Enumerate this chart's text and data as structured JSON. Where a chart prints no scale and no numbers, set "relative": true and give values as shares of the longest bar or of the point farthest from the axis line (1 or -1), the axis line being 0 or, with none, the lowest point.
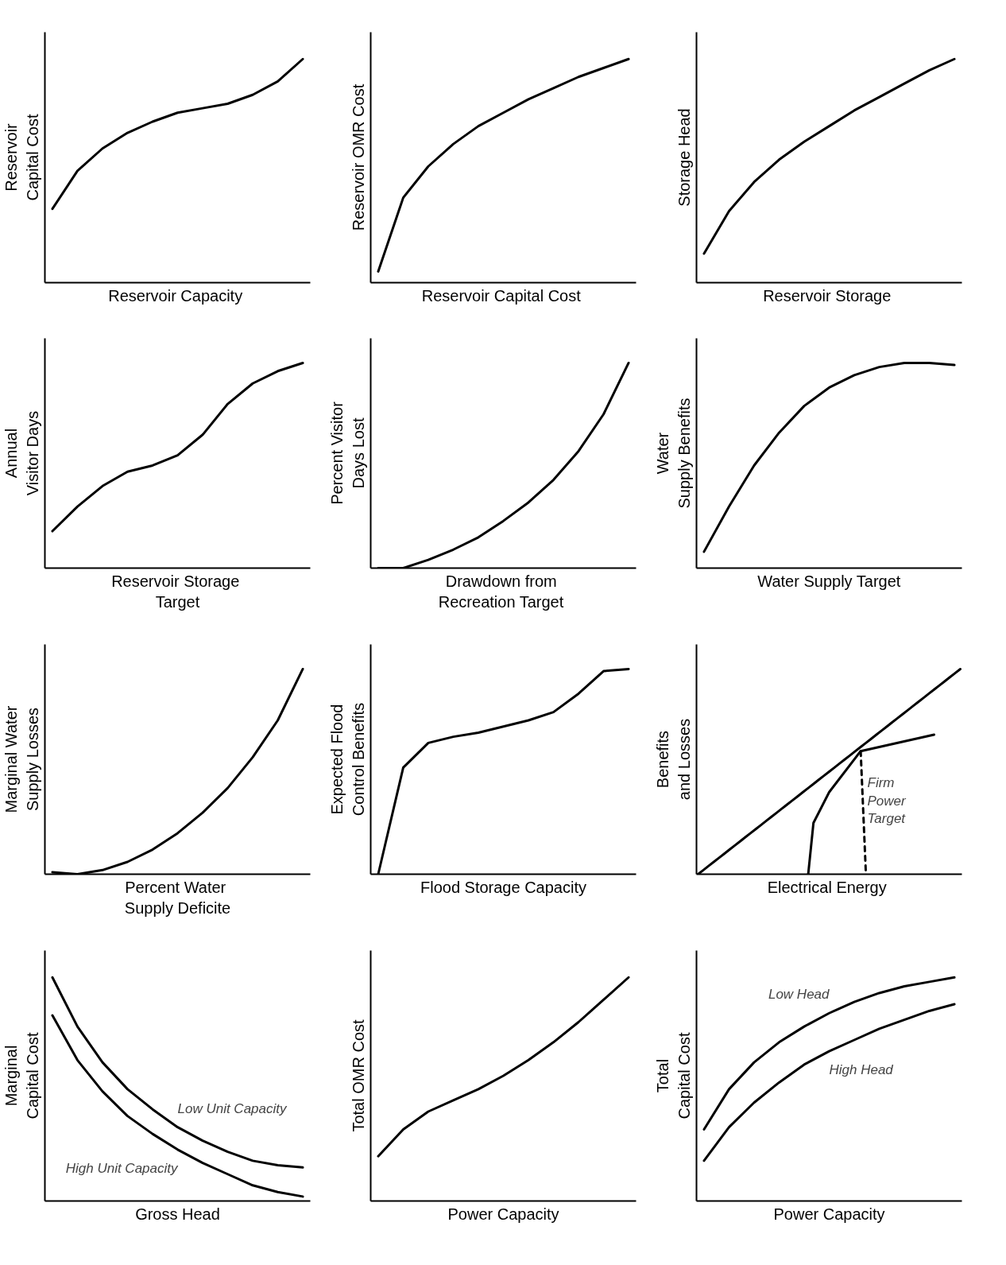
{
  "chart_data": [
    {
      "type": "line",
      "relative": true,
      "xlabel": "Reservoir  Capacity",
      "ylabel": "Reservoir\nCapital Cost",
      "categories": [
        null,
        null,
        null,
        null,
        null,
        null,
        null,
        null,
        null,
        null,
        null
      ],
      "series": [
        {
          "color": "#000000",
          "values": [
            0.33,
            0.5,
            0.6,
            0.67,
            0.72,
            0.76,
            0.78,
            0.8,
            0.84,
            0.9,
            1
          ]
        }
      ]
    },
    {
      "type": "line",
      "relative": true,
      "xlabel": "Reservoir  Capital Cost",
      "ylabel": "Reservoir OMR Cost",
      "categories": [
        null,
        null,
        null,
        null,
        null,
        null,
        null,
        null,
        null,
        null,
        null
      ],
      "series": [
        {
          "color": "#000000",
          "values": [
            0.05,
            0.38,
            0.52,
            0.62,
            0.7,
            0.76,
            0.82,
            0.87,
            0.92,
            0.96,
            1
          ]
        }
      ]
    },
    {
      "type": "line",
      "relative": true,
      "xlabel": "Reservoir  Storage",
      "ylabel": "Storage Head",
      "categories": [
        null,
        null,
        null,
        null,
        null,
        null,
        null,
        null,
        null,
        null,
        null
      ],
      "series": [
        {
          "color": "#000000",
          "values": [
            0.13,
            0.32,
            0.45,
            0.55,
            0.63,
            0.7,
            0.77,
            0.83,
            0.89,
            0.95,
            1
          ]
        }
      ]
    },
    {
      "type": "line",
      "relative": true,
      "xlabel": "Reservoir  Storage\nTarget",
      "ylabel": "Annual\nVisitor Days",
      "categories": [
        null,
        null,
        null,
        null,
        null,
        null,
        null,
        null,
        null,
        null,
        null
      ],
      "series": [
        {
          "color": "#000000",
          "values": [
            0.18,
            0.3,
            0.4,
            0.47,
            0.5,
            0.55,
            0.65,
            0.8,
            0.9,
            0.96,
            1
          ]
        }
      ]
    },
    {
      "type": "line",
      "relative": true,
      "xlabel": "Drawdown  from\nRecreation  Target",
      "ylabel": "Percent Visitor\nDays Lost",
      "categories": [
        null,
        null,
        null,
        null,
        null,
        null,
        null,
        null,
        null,
        null,
        null
      ],
      "series": [
        {
          "color": "#000000",
          "values": [
            0,
            0,
            0.04,
            0.09,
            0.15,
            0.23,
            0.32,
            0.43,
            0.57,
            0.75,
            1
          ]
        }
      ]
    },
    {
      "type": "line",
      "relative": true,
      "xlabel": "Water Supply Target",
      "ylabel": "Water\nSupply Benefits",
      "categories": [
        null,
        null,
        null,
        null,
        null,
        null,
        null,
        null,
        null,
        null,
        null
      ],
      "series": [
        {
          "color": "#000000",
          "values": [
            0.08,
            0.3,
            0.5,
            0.66,
            0.79,
            0.88,
            0.94,
            0.98,
            1,
            1,
            0.99
          ]
        }
      ]
    },
    {
      "type": "line",
      "relative": true,
      "xlabel": "Percent  Water\nSupply Deficite",
      "ylabel": "Marginal Water\nSupply Losses",
      "categories": [
        null,
        null,
        null,
        null,
        null,
        null,
        null,
        null,
        null,
        null,
        null
      ],
      "series": [
        {
          "color": "#000000",
          "values": [
            0.01,
            0,
            0.02,
            0.06,
            0.12,
            0.2,
            0.3,
            0.42,
            0.57,
            0.75,
            1
          ]
        }
      ]
    },
    {
      "type": "line",
      "relative": true,
      "xlabel": "Flood Storage Capacity",
      "ylabel": "Expected Flood\nControl Benefits",
      "categories": [
        null,
        null,
        null,
        null,
        null,
        null,
        null,
        null,
        null,
        null,
        null
      ],
      "series": [
        {
          "color": "#000000",
          "values": [
            0,
            0.52,
            0.64,
            0.67,
            0.69,
            0.72,
            0.75,
            0.79,
            0.88,
            0.99,
            1
          ]
        }
      ]
    },
    {
      "type": "line",
      "relative": true,
      "xlabel": "Electrical  Energy",
      "ylabel": "Benefits\nand Losses",
      "categories": [
        null,
        null,
        null,
        null,
        null,
        null,
        null,
        null,
        null,
        null,
        null,
        null,
        null,
        null,
        null,
        null,
        null,
        null,
        null,
        null,
        null,
        null,
        null,
        null,
        null,
        null,
        null,
        null,
        null,
        null,
        null,
        null,
        null,
        null,
        null,
        null,
        null,
        null,
        null,
        null,
        null,
        null,
        null,
        null,
        null,
        null,
        null,
        null,
        null,
        null,
        null
      ],
      "annotations": [
        "Firm\nPower\nTarget"
      ],
      "series": [
        {
          "color": "#000000",
          "values": [
            0,
            0.02,
            0.04,
            0.06,
            0.08,
            0.1,
            0.12,
            0.14,
            0.16,
            0.18,
            0.2,
            0.22,
            0.24,
            0.26,
            0.28,
            0.3,
            0.32,
            0.34,
            0.36,
            0.38,
            0.4,
            0.42,
            0.44,
            0.46,
            0.48,
            0.5,
            0.52,
            0.54,
            0.56,
            0.58,
            0.6,
            0.62,
            0.64,
            0.66,
            0.68,
            0.7,
            0.72,
            0.74,
            0.76,
            0.78,
            0.8,
            0.82,
            0.84,
            0.86,
            0.88,
            0.9,
            0.92,
            0.94,
            0.96,
            0.98,
            1
          ]
        },
        {
          "color": "#000000",
          "values": [
            null,
            null,
            null,
            null,
            null,
            null,
            null,
            null,
            null,
            null,
            null,
            null,
            null,
            null,
            null,
            null,
            null,
            null,
            null,
            null,
            null,
            0,
            0.25,
            null,
            null,
            0.4,
            null,
            null,
            null,
            null,
            null,
            0.6,
            null,
            null,
            null,
            null,
            null,
            null,
            null,
            null,
            null,
            null,
            null,
            null,
            null,
            0.68,
            null,
            null,
            null,
            null,
            null
          ]
        },
        {
          "color": "#000000",
          "line_style": "dashed",
          "values": [
            null,
            null,
            null,
            null,
            null,
            null,
            null,
            null,
            null,
            null,
            null,
            null,
            null,
            null,
            null,
            null,
            null,
            null,
            null,
            null,
            null,
            null,
            null,
            null,
            null,
            null,
            null,
            null,
            null,
            null,
            null,
            0.6,
            0,
            null,
            null,
            null,
            null,
            null,
            null,
            null,
            null,
            null,
            null,
            null,
            null,
            null,
            null,
            null,
            null,
            null,
            null
          ]
        }
      ]
    },
    {
      "type": "line",
      "relative": true,
      "xlabel": "Gross Head",
      "ylabel": "Marginal\nCapital Cost",
      "categories": [
        null,
        null,
        null,
        null,
        null,
        null,
        null,
        null,
        null,
        null,
        null
      ],
      "series": [
        {
          "name": "Low Unit Capacity",
          "color": "#000000",
          "values": [
            1,
            0.78,
            0.62,
            0.5,
            0.41,
            0.33,
            0.27,
            0.22,
            0.18,
            0.16,
            0.15
          ]
        },
        {
          "name": "High Unit Capacity",
          "color": "#000000",
          "values": [
            0.83,
            0.63,
            0.49,
            0.38,
            0.3,
            0.23,
            0.17,
            0.12,
            0.07,
            0.04,
            0.02
          ]
        }
      ]
    },
    {
      "type": "line",
      "relative": true,
      "xlabel": "Power Capacity",
      "ylabel": "Total OMR Cost",
      "categories": [
        null,
        null,
        null,
        null,
        null,
        null,
        null,
        null,
        null,
        null,
        null
      ],
      "series": [
        {
          "color": "#000000",
          "values": [
            0.2,
            0.32,
            0.4,
            0.45,
            0.5,
            0.56,
            0.63,
            0.71,
            0.8,
            0.9,
            1
          ]
        }
      ]
    },
    {
      "type": "line",
      "relative": true,
      "xlabel": "Power Capacity",
      "ylabel": "Total\nCapital Cost",
      "categories": [
        null,
        null,
        null,
        null,
        null,
        null,
        null,
        null,
        null,
        null,
        null
      ],
      "series": [
        {
          "name": "Low Head",
          "color": "#000000",
          "values": [
            0.32,
            0.5,
            0.62,
            0.71,
            0.78,
            0.84,
            0.89,
            0.93,
            0.96,
            0.98,
            1
          ]
        },
        {
          "name": "High Head",
          "color": "#000000",
          "values": [
            0.18,
            0.33,
            0.44,
            0.53,
            0.61,
            0.67,
            0.72,
            0.77,
            0.81,
            0.85,
            0.88
          ]
        }
      ]
    }
  ]
}
